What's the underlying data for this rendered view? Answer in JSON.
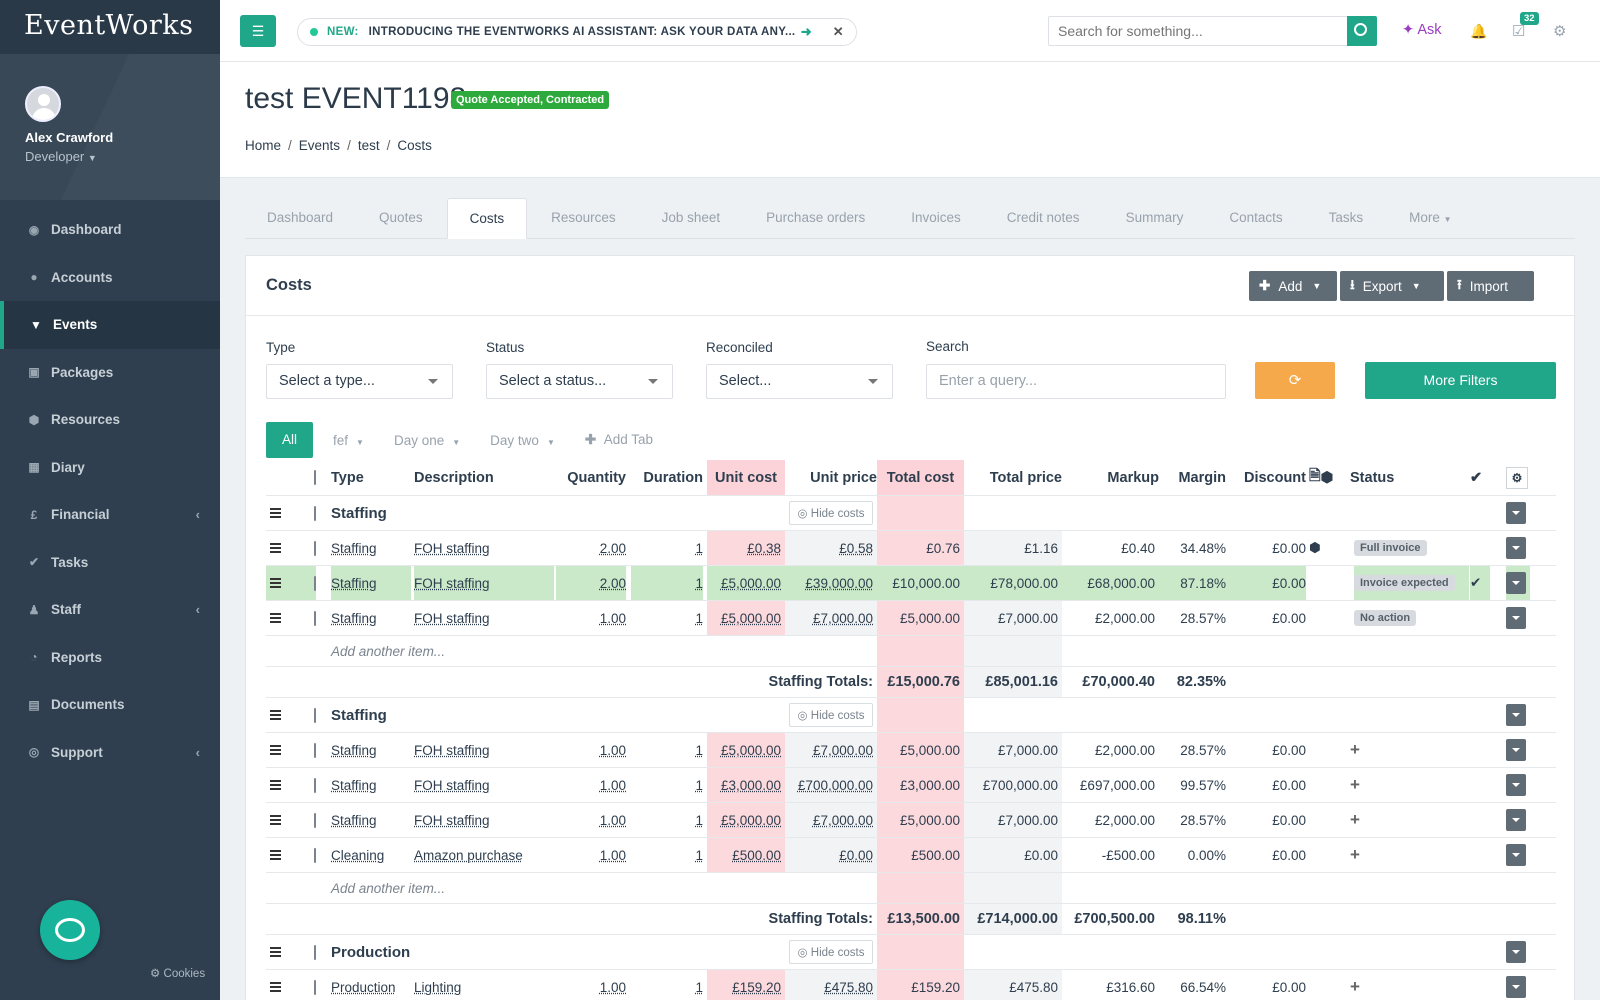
{
  "app": {
    "logo": "EventWorks",
    "search_placeholder": "Search for something...",
    "ask_label": "Ask",
    "task_count": "32",
    "cookies_label": "Cookies"
  },
  "news": {
    "tag": "NEW:",
    "text": "INTRODUCING THE EVENTWORKS AI ASSISTANT: ASK YOUR DATA ANY..."
  },
  "user": {
    "name": "Alex Crawford",
    "role": "Developer"
  },
  "sidebar": [
    {
      "label": "Dashboard",
      "icon": "dashboard-icon"
    },
    {
      "label": "Accounts",
      "icon": "users-icon"
    },
    {
      "label": "Events",
      "icon": "filter-icon",
      "active": true
    },
    {
      "label": "Packages",
      "icon": "packages-icon"
    },
    {
      "label": "Resources",
      "icon": "cube-icon"
    },
    {
      "label": "Diary",
      "icon": "calendar-icon"
    },
    {
      "label": "Financial",
      "icon": "pound-icon",
      "submenu": true
    },
    {
      "label": "Tasks",
      "icon": "check-icon"
    },
    {
      "label": "Staff",
      "icon": "user-icon",
      "submenu": true
    },
    {
      "label": "Reports",
      "icon": "pie-chart-icon"
    },
    {
      "label": "Documents",
      "icon": "document-icon"
    },
    {
      "label": "Support",
      "icon": "life-ring-icon",
      "submenu": true
    }
  ],
  "page": {
    "title_prefix": "test",
    "title_code": "EVENT1198",
    "status": "Quote Accepted, Contracted"
  },
  "breadcrumb": [
    "Home",
    "Events",
    "test",
    "Costs"
  ],
  "tabs": [
    "Dashboard",
    "Quotes",
    "Costs",
    "Resources",
    "Job sheet",
    "Purchase orders",
    "Invoices",
    "Credit notes",
    "Summary",
    "Contacts",
    "Tasks",
    "More"
  ],
  "panel": {
    "title": "Costs",
    "add_label": "Add",
    "export_label": "Export",
    "import_label": "Import"
  },
  "filters": {
    "type_label": "Type",
    "type_value": "Select a type...",
    "status_label": "Status",
    "status_value": "Select a status...",
    "reconciled_label": "Reconciled",
    "reconciled_value": "Select...",
    "search_label": "Search",
    "search_placeholder": "Enter a query...",
    "more_filters_label": "More Filters"
  },
  "subtabs": {
    "all": "All",
    "items": [
      "fef",
      "Day one",
      "Day two"
    ],
    "add": "Add Tab"
  },
  "columns": {
    "type": "Type",
    "description": "Description",
    "quantity": "Quantity",
    "duration": "Duration",
    "unit_cost": "Unit cost",
    "unit_price": "Unit price",
    "total_cost": "Total cost",
    "total_price": "Total price",
    "markup": "Markup",
    "margin": "Margin",
    "discount": "Discount",
    "status": "Status"
  },
  "labels": {
    "hide_costs": "Hide costs",
    "add_item": "Add another item...",
    "totals": "Staffing Totals:"
  },
  "groups": [
    {
      "name": "Staffing",
      "rows": [
        {
          "type": "Staffing",
          "description": "FOH staffing",
          "quantity": "2.00",
          "duration": "1",
          "unit_cost": "£0.38",
          "unit_price": "£0.58",
          "total_cost": "£0.76",
          "total_price": "£1.16",
          "markup": "£0.40",
          "margin": "34.48%",
          "discount": "£0.00",
          "status": "Full invoice",
          "ok": false,
          "highlight": false
        },
        {
          "type": "Staffing",
          "description": "FOH staffing",
          "quantity": "2.00",
          "duration": "1",
          "unit_cost": "£5,000.00",
          "unit_price": "£39,000.00",
          "total_cost": "£10,000.00",
          "total_price": "£78,000.00",
          "markup": "£68,000.00",
          "margin": "87.18%",
          "discount": "£0.00",
          "status": "Invoice expected",
          "ok": true,
          "highlight": true
        },
        {
          "type": "Staffing",
          "description": "FOH staffing",
          "quantity": "1.00",
          "duration": "1",
          "unit_cost": "£5,000.00",
          "unit_price": "£7,000.00",
          "total_cost": "£5,000.00",
          "total_price": "£7,000.00",
          "markup": "£2,000.00",
          "margin": "28.57%",
          "discount": "£0.00",
          "status": "No action",
          "ok": false,
          "highlight": false
        }
      ],
      "totals": {
        "label": "Staffing Totals:",
        "total_cost": "£15,000.76",
        "total_price": "£85,001.16",
        "markup": "£70,000.40",
        "margin": "82.35%"
      }
    },
    {
      "name": "Staffing",
      "rows": [
        {
          "type": "Staffing",
          "description": "FOH staffing",
          "quantity": "1.00",
          "duration": "1",
          "unit_cost": "£5,000.00",
          "unit_price": "£7,000.00",
          "total_cost": "£5,000.00",
          "total_price": "£7,000.00",
          "markup": "£2,000.00",
          "margin": "28.57%",
          "discount": "£0.00"
        },
        {
          "type": "Staffing",
          "description": "FOH staffing",
          "quantity": "1.00",
          "duration": "1",
          "unit_cost": "£3,000.00",
          "unit_price": "£700,000.00",
          "total_cost": "£3,000.00",
          "total_price": "£700,000.00",
          "markup": "£697,000.00",
          "margin": "99.57%",
          "discount": "£0.00"
        },
        {
          "type": "Staffing",
          "description": "FOH staffing",
          "quantity": "1.00",
          "duration": "1",
          "unit_cost": "£5,000.00",
          "unit_price": "£7,000.00",
          "total_cost": "£5,000.00",
          "total_price": "£7,000.00",
          "markup": "£2,000.00",
          "margin": "28.57%",
          "discount": "£0.00"
        },
        {
          "type": "Cleaning",
          "description": "Amazon purchase",
          "quantity": "1.00",
          "duration": "1",
          "unit_cost": "£500.00",
          "unit_price": "£0.00",
          "total_cost": "£500.00",
          "total_price": "£0.00",
          "markup": "-£500.00",
          "margin": "0.00%",
          "discount": "£0.00"
        }
      ],
      "totals": {
        "label": "Staffing Totals:",
        "total_cost": "£13,500.00",
        "total_price": "£714,000.00",
        "markup": "£700,500.00",
        "margin": "98.11%"
      }
    },
    {
      "name": "Production",
      "rows": [
        {
          "type": "Production",
          "description": "Lighting",
          "quantity": "1.00",
          "duration": "1",
          "unit_cost": "£159.20",
          "unit_price": "£475.80",
          "total_cost": "£159.20",
          "total_price": "£475.80",
          "markup": "£316.60",
          "margin": "66.54%",
          "discount": "£0.00"
        }
      ]
    }
  ]
}
